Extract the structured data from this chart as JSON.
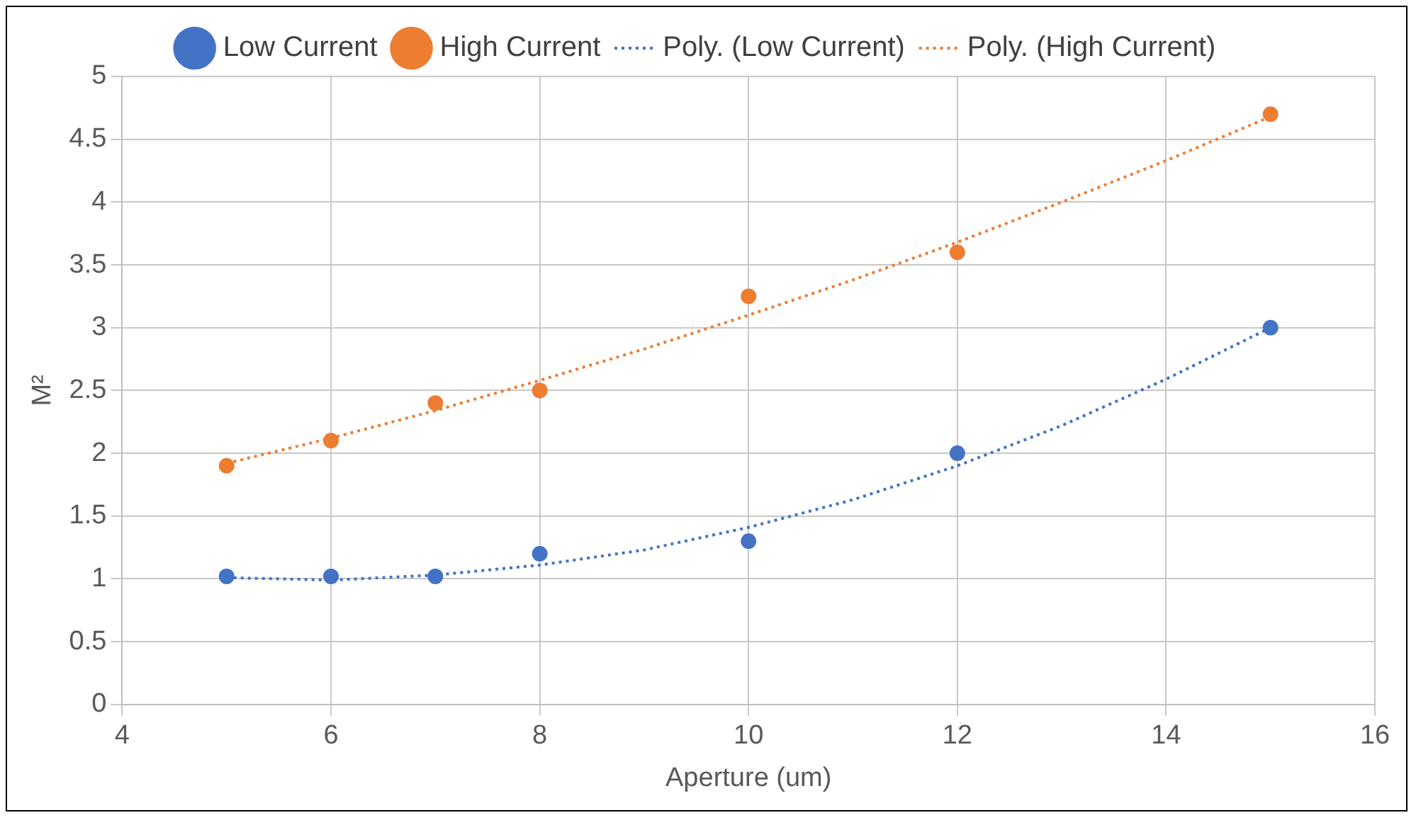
{
  "chart_data": {
    "type": "scatter",
    "xlabel": "Aperture (um)",
    "ylabel": "M²",
    "xlim": [
      4,
      16
    ],
    "xticks": [
      4,
      6,
      8,
      10,
      12,
      14,
      16
    ],
    "ylim": [
      0,
      5
    ],
    "yticks": [
      0,
      0.5,
      1,
      1.5,
      2,
      2.5,
      3,
      3.5,
      4,
      4.5,
      5
    ],
    "grid": true,
    "legend": "top",
    "marker": "circle",
    "series": [
      {
        "name": "Low Current",
        "color": "#4472c4",
        "x": [
          5,
          6,
          7,
          8,
          10,
          12,
          15
        ],
        "values": [
          1.02,
          1.02,
          1.02,
          1.2,
          1.3,
          2.0,
          3.0
        ]
      },
      {
        "name": "High Current",
        "color": "#ed7d31",
        "x": [
          5,
          6,
          7,
          8,
          10,
          12,
          15
        ],
        "values": [
          1.9,
          2.1,
          2.4,
          2.5,
          3.25,
          3.6,
          4.7
        ]
      },
      {
        "name": "Poly. (Low Current)",
        "type": "line",
        "color": "#4472c4",
        "line_style": "dotted",
        "marker": "none",
        "x": [
          5,
          6,
          7,
          8,
          9,
          10,
          11,
          12,
          13,
          14,
          15
        ],
        "values": [
          1.01,
          0.99,
          1.03,
          1.11,
          1.23,
          1.41,
          1.63,
          1.9,
          2.22,
          2.59,
          3.0
        ]
      },
      {
        "name": "Poly. (High Current)",
        "type": "line",
        "color": "#ed7d31",
        "line_style": "dotted",
        "marker": "none",
        "x": [
          5,
          6,
          7,
          8,
          9,
          10,
          11,
          12,
          13,
          14,
          15
        ],
        "values": [
          1.92,
          2.12,
          2.34,
          2.58,
          2.83,
          3.1,
          3.38,
          3.68,
          4.0,
          4.33,
          4.68
        ]
      }
    ]
  }
}
